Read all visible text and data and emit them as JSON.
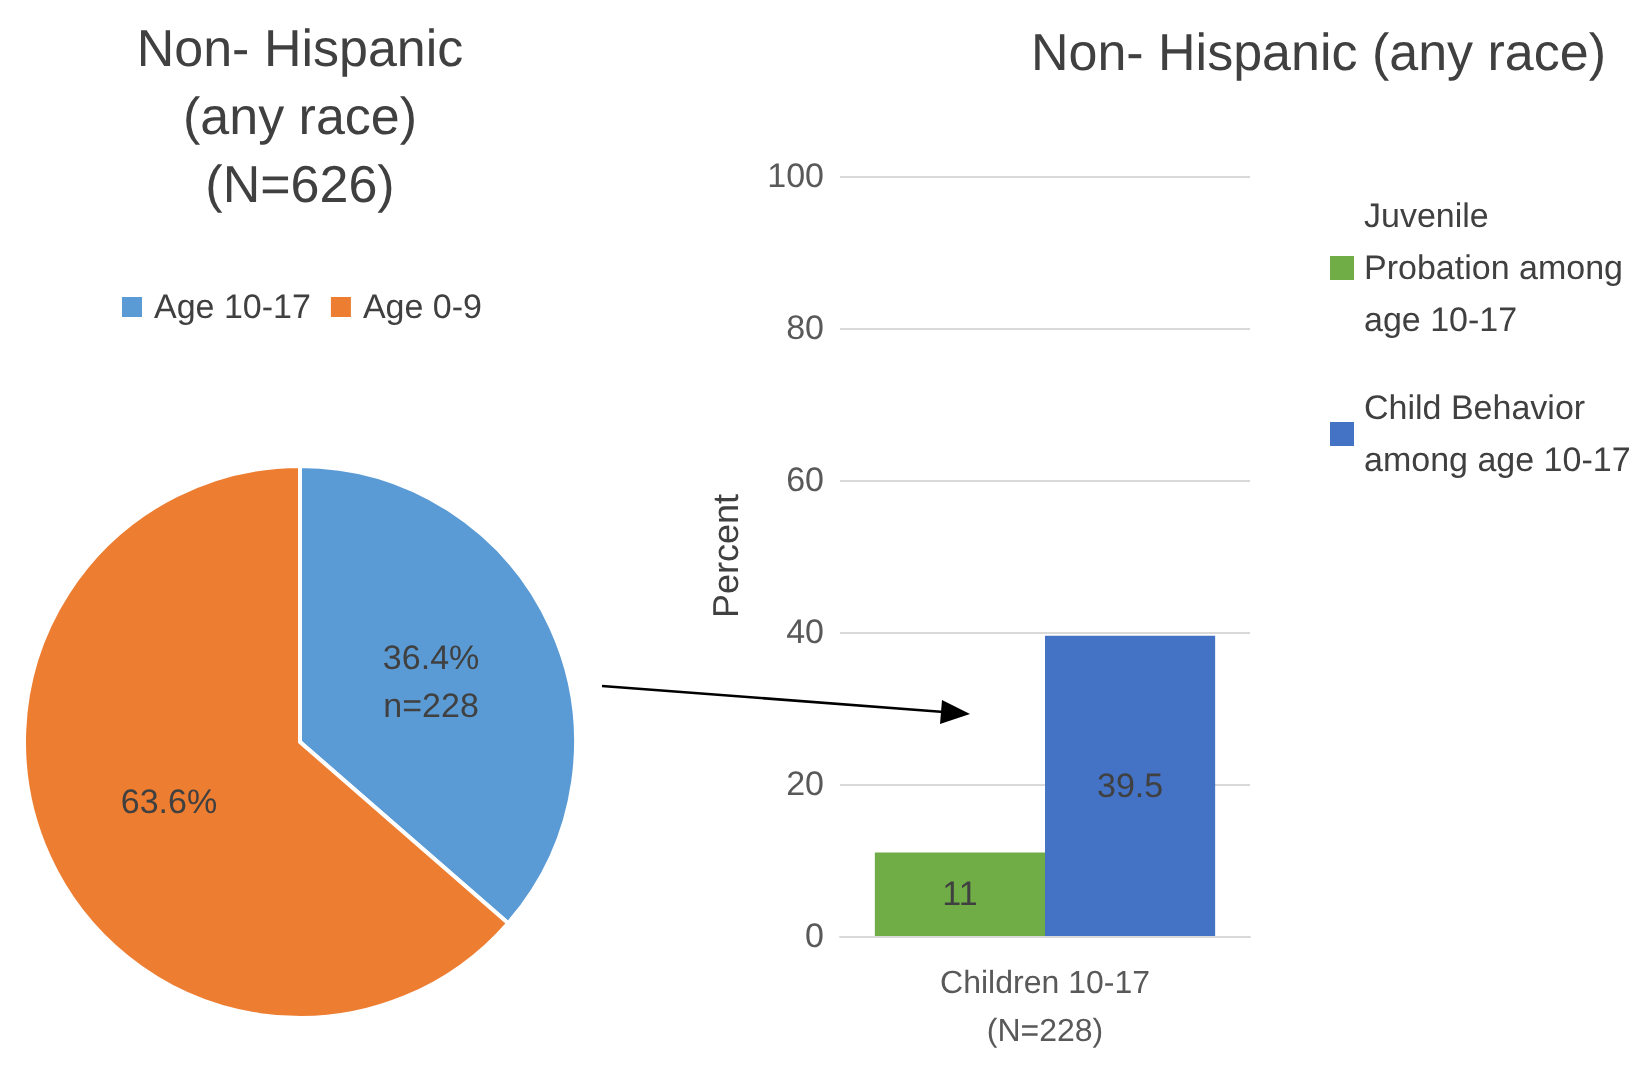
{
  "chart_data": [
    {
      "type": "pie",
      "title": "Non- Hispanic\n(any race)\n(N=626)",
      "categories": [
        "Age 10-17",
        "Age 0-9"
      ],
      "values": [
        36.4,
        63.6
      ],
      "colors": [
        "#5b9bd5",
        "#ed7d31"
      ],
      "value_labels": [
        "36.4%\nn=228",
        "63.6%"
      ],
      "legend": "top"
    },
    {
      "type": "bar",
      "title": "Non- Hispanic (any race)",
      "ylabel": "Percent",
      "categories": [
        "Children 10-17\n(N=228)"
      ],
      "series": [
        {
          "name": "Juvenile Probation among age 10-17",
          "color": "#70ad47",
          "values": [
            11
          ]
        },
        {
          "name": "Child Behavior among age 10-17",
          "color": "#4472c4",
          "values": [
            39.5
          ]
        }
      ],
      "ylim": [
        0,
        100
      ],
      "yticks": [
        0,
        20,
        40,
        60,
        80,
        100
      ],
      "grid": "y",
      "legend": "right",
      "data_labels": true
    }
  ]
}
